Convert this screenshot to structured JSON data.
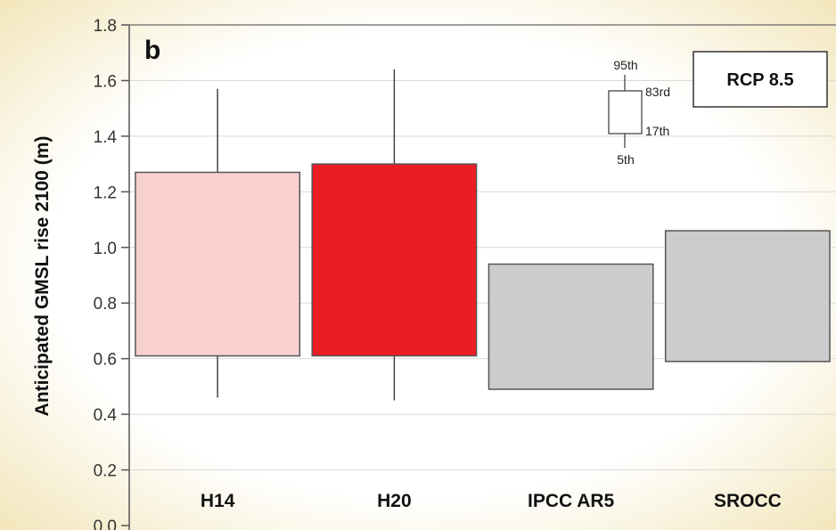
{
  "chart_data": {
    "type": "box",
    "panel_label": "b",
    "scenario": "RCP 8.5",
    "ylabel": "Anticipated GMSL rise 2100 (m)",
    "ylim": [
      0.0,
      1.8
    ],
    "yticks": [
      0.0,
      0.2,
      0.4,
      0.6,
      0.8,
      1.0,
      1.2,
      1.4,
      1.6,
      1.8
    ],
    "ytick_labels": [
      "0.0",
      "0.2",
      "0.4",
      "0.6",
      "0.8",
      "1.0",
      "1.2",
      "1.4",
      "1.6",
      "1.8"
    ],
    "categories": [
      "H14",
      "H20",
      "IPCC AR5",
      "SROCC"
    ],
    "boxes": [
      {
        "category": "H14",
        "p5": 0.46,
        "p17": 0.61,
        "p83": 1.27,
        "p95": 1.57,
        "color": "#f9d0d0"
      },
      {
        "category": "H20",
        "p5": 0.45,
        "p17": 0.61,
        "p83": 1.3,
        "p95": 1.64,
        "color": "#ec1c24"
      },
      {
        "category": "IPCC AR5",
        "p5": null,
        "p17": 0.49,
        "p83": 0.94,
        "p95": null,
        "color": "#cccccc"
      },
      {
        "category": "SROCC",
        "p5": null,
        "p17": 0.59,
        "p83": 1.06,
        "p95": null,
        "color": "#cccccc"
      }
    ],
    "legend": {
      "labels": {
        "p95": "95th",
        "p83": "83rd",
        "p17": "17th",
        "p5": "5th"
      }
    },
    "grid": true
  }
}
